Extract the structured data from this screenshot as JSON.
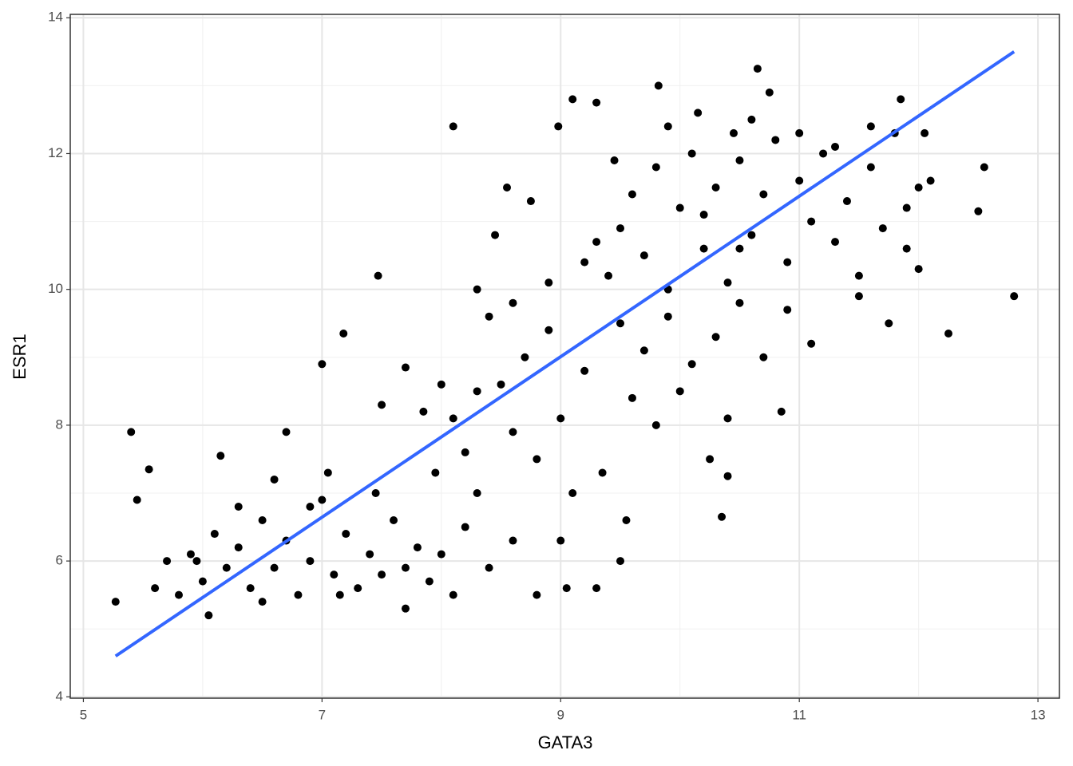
{
  "chart_data": {
    "type": "scatter",
    "x_label": "GATA3",
    "y_label": "ESR1",
    "xlim": [
      4.89,
      13.18
    ],
    "ylim": [
      3.98,
      14.05
    ],
    "xticks": [
      5,
      7,
      9,
      11,
      13
    ],
    "yticks": [
      4,
      6,
      8,
      10,
      12,
      14
    ],
    "x_minor_grid": [
      6,
      8,
      10,
      12
    ],
    "y_minor_grid": [
      5,
      7,
      9,
      11,
      13
    ],
    "grid": true,
    "series": [
      {
        "type": "scatter",
        "color": "#000000",
        "x": [
          5.27,
          5.4,
          5.45,
          5.55,
          12.8,
          12.55,
          12.5,
          12.25,
          10.65,
          9.82,
          8.1,
          7.47,
          7.0,
          7.18,
          9.1,
          9.3,
          10.75,
          10.35,
          9.5,
          9.3,
          9.05,
          7.7,
          6.05,
          8.98,
          11.85,
          12.05,
          5.6,
          5.7,
          5.8,
          5.9,
          6.0,
          6.1,
          6.2,
          6.3,
          6.4,
          6.5,
          6.6,
          6.7,
          6.8,
          6.9,
          7.0,
          7.1,
          7.2,
          7.3,
          7.4,
          7.5,
          7.6,
          7.7,
          7.8,
          7.9,
          8.0,
          8.1,
          8.2,
          8.4,
          8.6,
          8.8,
          6.15,
          6.6,
          6.7,
          7.05,
          7.45,
          6.9,
          6.3,
          5.95,
          6.5,
          7.15,
          8.1,
          8.3,
          8.5,
          8.7,
          8.9,
          8.2,
          8.6,
          8.8,
          9.0,
          9.2,
          8.4,
          8.6,
          8.9,
          8.45,
          8.0,
          7.7,
          7.5,
          8.3,
          8.55,
          8.75,
          9.1,
          9.35,
          9.55,
          9.0,
          8.3,
          7.85,
          7.95,
          9.4,
          9.5,
          9.6,
          9.7,
          9.8,
          9.9,
          10.0,
          10.1,
          10.2,
          10.3,
          10.4,
          10.5,
          10.6,
          10.7,
          10.8,
          10.9,
          11.0,
          11.1,
          11.2,
          11.3,
          11.4,
          11.5,
          11.6,
          11.7,
          11.8,
          11.9,
          12.0,
          9.5,
          9.7,
          9.9,
          10.1,
          10.3,
          10.5,
          10.7,
          10.9,
          11.1,
          9.45,
          9.9,
          10.15,
          10.45,
          10.6,
          11.0,
          11.3,
          11.6,
          9.3,
          9.6,
          9.8,
          10.0,
          10.4,
          10.25,
          10.4,
          10.85,
          11.5,
          11.75,
          11.9,
          12.1,
          12.0,
          9.2,
          10.2,
          10.5
        ],
        "values": [
          5.4,
          7.9,
          6.9,
          7.35,
          9.9,
          11.8,
          11.15,
          9.35,
          13.25,
          13.0,
          12.4,
          10.2,
          8.9,
          9.35,
          12.8,
          12.75,
          12.9,
          6.65,
          6.0,
          5.6,
          5.6,
          5.3,
          5.2,
          12.4,
          12.8,
          12.3,
          5.6,
          6.0,
          5.5,
          6.1,
          5.7,
          6.4,
          5.9,
          6.2,
          5.6,
          6.6,
          5.9,
          6.3,
          5.5,
          6.0,
          6.9,
          5.8,
          6.4,
          5.6,
          6.1,
          5.8,
          6.6,
          5.9,
          6.2,
          5.7,
          6.1,
          5.5,
          6.5,
          5.9,
          6.3,
          5.5,
          7.55,
          7.2,
          7.9,
          7.3,
          7.0,
          6.8,
          6.8,
          6.0,
          5.4,
          5.5,
          8.1,
          8.5,
          8.6,
          9.0,
          9.4,
          7.6,
          7.9,
          7.5,
          8.1,
          8.8,
          9.6,
          9.8,
          10.1,
          10.8,
          8.6,
          8.85,
          8.3,
          10.0,
          11.5,
          11.3,
          7.0,
          7.3,
          6.6,
          6.3,
          7.0,
          8.2,
          7.3,
          10.2,
          10.9,
          11.4,
          10.5,
          11.8,
          10.0,
          11.2,
          12.0,
          10.6,
          11.5,
          10.1,
          11.9,
          10.8,
          11.4,
          12.2,
          10.4,
          11.6,
          11.0,
          12.0,
          10.7,
          11.3,
          10.2,
          11.8,
          10.9,
          12.3,
          11.2,
          11.5,
          9.5,
          9.1,
          9.6,
          8.9,
          9.3,
          9.8,
          9.0,
          9.7,
          9.2,
          11.9,
          12.4,
          12.6,
          12.3,
          12.5,
          12.3,
          12.1,
          12.4,
          10.7,
          8.4,
          8.0,
          8.5,
          8.1,
          7.5,
          7.25,
          8.2,
          9.9,
          9.5,
          10.6,
          11.6,
          10.3,
          10.4,
          11.1,
          10.6
        ]
      },
      {
        "type": "line",
        "color": "#3366ff",
        "x": [
          5.27,
          12.8
        ],
        "values": [
          4.6,
          13.5
        ]
      }
    ]
  }
}
